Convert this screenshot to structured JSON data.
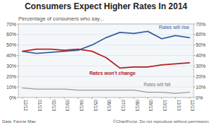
{
  "chart_data": {
    "type": "line",
    "title": "Consumers Expect Higher Rates In 2014",
    "subtitle": "Percentage of consumers who say...",
    "footer_left": "Data: Fannie Mae",
    "footer_right": "©ChartForce  Do not reproduce without permission.",
    "categories": [
      "12/12",
      "01/13",
      "02/13",
      "03/13",
      "04/13",
      "05/13",
      "06/13",
      "07/13",
      "08/13",
      "09/13",
      "10/13",
      "11/13",
      "12/13"
    ],
    "series": [
      {
        "name": "Rates will rise",
        "color": "#3a5fa0",
        "values": [
          44,
          42,
          43,
          44,
          45,
          50,
          57,
          62,
          61,
          63,
          56,
          59,
          57
        ]
      },
      {
        "name": "Rates won't change",
        "color": "#b52020",
        "values": [
          44,
          46,
          46,
          45,
          46,
          44,
          38,
          28,
          29,
          29,
          31,
          32,
          33
        ]
      },
      {
        "name": "Rates will fall",
        "color": "#999999",
        "values": [
          9,
          8,
          8,
          8,
          7,
          7,
          7,
          7,
          7,
          5,
          5,
          4,
          5
        ]
      }
    ],
    "ylim": [
      0,
      70
    ],
    "yticks": [
      {
        "value": 0,
        "label": "0%"
      },
      {
        "value": 10,
        "label": "10%"
      },
      {
        "value": 20,
        "label": "20%"
      },
      {
        "value": 30,
        "label": "30%"
      },
      {
        "value": 40,
        "label": "40%"
      },
      {
        "value": 50,
        "label": "50%"
      },
      {
        "value": 60,
        "label": "60%"
      },
      {
        "value": 70,
        "label": "70%"
      }
    ],
    "y2lim": [
      0,
      70
    ],
    "y2ticks": [
      {
        "value": 0,
        "label": "0%"
      },
      {
        "value": 10,
        "label": "10%"
      },
      {
        "value": 20,
        "label": "20%"
      },
      {
        "value": 30,
        "label": "30%"
      },
      {
        "value": 40,
        "label": "40%"
      },
      {
        "value": 50,
        "label": "50%"
      },
      {
        "value": 60,
        "label": "60%"
      },
      {
        "value": 70,
        "label": "70%"
      }
    ],
    "grid": true
  }
}
